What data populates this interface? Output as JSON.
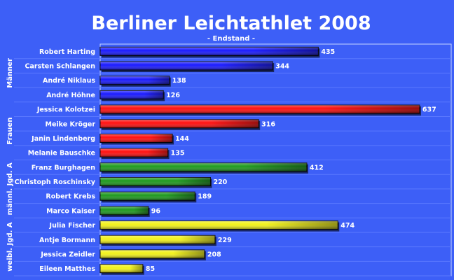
{
  "chart_data": {
    "type": "bar",
    "orientation": "horizontal",
    "title": "Berliner Leichtathlet 2008",
    "subtitle": "- Endstand -",
    "xlim": [
      0,
      700
    ],
    "grid": false,
    "legend": "none",
    "groups": [
      {
        "name": "Männer",
        "color": "#1a1aff",
        "items": [
          {
            "label": "Robert Harting",
            "value": 435
          },
          {
            "label": "Carsten Schlangen",
            "value": 344
          },
          {
            "label": "André Niklaus",
            "value": 138
          },
          {
            "label": "André Höhne",
            "value": 126
          }
        ]
      },
      {
        "name": "Frauen",
        "color": "#ff1010",
        "items": [
          {
            "label": "Jessica Kolotzei",
            "value": 637
          },
          {
            "label": "Meike Kröger",
            "value": 316
          },
          {
            "label": "Janin Lindenberg",
            "value": 144
          },
          {
            "label": "Melanie Bauschke",
            "value": 135
          }
        ]
      },
      {
        "name": "männl. Jgd. A",
        "color": "#1f9a1f",
        "items": [
          {
            "label": "Franz Burghagen",
            "value": 412
          },
          {
            "label": "Christoph Roschinsky",
            "value": 220
          },
          {
            "label": "Robert Krebs",
            "value": 189
          },
          {
            "label": "Marco Kaiser",
            "value": 96
          }
        ]
      },
      {
        "name": "weibl. Jgd. A",
        "color": "#f2f21a",
        "items": [
          {
            "label": "Julia Fischer",
            "value": 474
          },
          {
            "label": "Antje Bormann",
            "value": 229
          },
          {
            "label": "Jessica Zeidler",
            "value": 208
          },
          {
            "label": "Eileen Matthes",
            "value": 85
          }
        ]
      }
    ]
  }
}
